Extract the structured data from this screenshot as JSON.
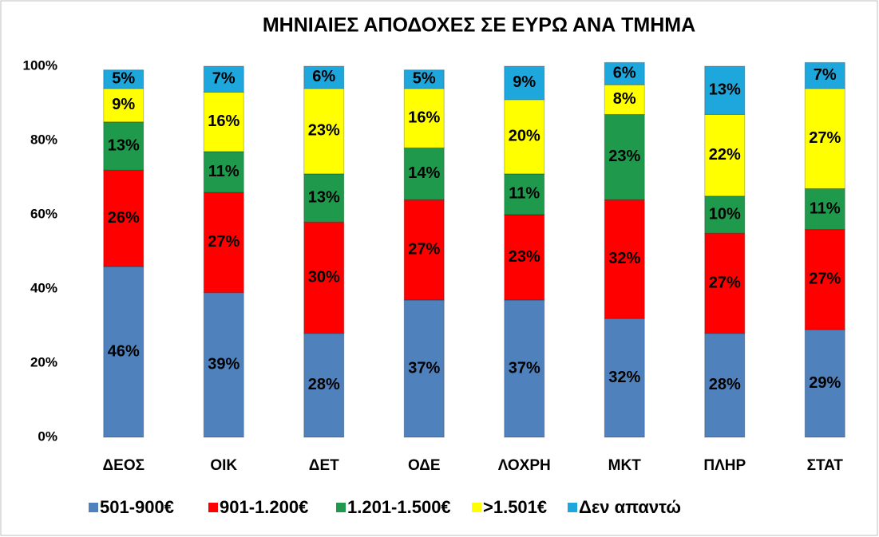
{
  "chart_data": {
    "type": "stacked_bar",
    "title": "ΜΗΝΙΑΙΕΣ ΑΠΟΔΟΧΕΣ ΣΕ ΕΥΡΩ ΑΝΑ ΤΜΗΜΑ",
    "categories": [
      "ΔΕΟΣ",
      "ΟΙΚ",
      "ΔΕΤ",
      "ΟΔΕ",
      "ΛΟΧΡΗ",
      "ΜΚΤ",
      "ΠΛΗΡ",
      "ΣΤΑΤ"
    ],
    "series": [
      {
        "name": "501-900€",
        "color": "#4f81bd",
        "values": [
          46,
          39,
          28,
          37,
          37,
          32,
          28,
          29
        ],
        "value_labels": [
          "46%",
          "39%",
          "28%",
          "37%",
          "37%",
          "32%",
          "28%",
          "29%"
        ]
      },
      {
        "name": "901-1.200€",
        "color": "#ff0000",
        "values": [
          26,
          27,
          30,
          27,
          23,
          32,
          27,
          27
        ],
        "value_labels": [
          "26%",
          "27%",
          "30%",
          "27%",
          "23%",
          "32%",
          "27%",
          "27%"
        ]
      },
      {
        "name": "1.201-1.500€",
        "color": "#1f9a4c",
        "values": [
          13,
          11,
          13,
          14,
          11,
          23,
          10,
          11
        ],
        "value_labels": [
          "13%",
          "11%",
          "13%",
          "14%",
          "11%",
          "23%",
          "10%",
          "11%"
        ]
      },
      {
        "name": ">1.501€",
        "color": "#ffff00",
        "values": [
          9,
          16,
          23,
          16,
          20,
          8,
          22,
          27
        ],
        "value_labels": [
          "9%",
          "16%",
          "23%",
          "16%",
          "20%",
          "8%",
          "22%",
          "27%"
        ]
      },
      {
        "name": "Δεν απαντώ",
        "color": "#1ea7dc",
        "values": [
          5,
          7,
          6,
          5,
          9,
          6,
          13,
          7
        ],
        "value_labels": [
          "5%",
          "7%",
          "6%",
          "5%",
          "9%",
          "6%",
          "13%",
          "7%"
        ]
      }
    ],
    "ylim": [
      0,
      100
    ],
    "yticks": [
      {
        "value": 0,
        "label": "0%"
      },
      {
        "value": 20,
        "label": "20%"
      },
      {
        "value": 40,
        "label": "40%"
      },
      {
        "value": 60,
        "label": "60%"
      },
      {
        "value": 80,
        "label": "80%"
      },
      {
        "value": 100,
        "label": "100%"
      }
    ],
    "legend": "bottom"
  }
}
